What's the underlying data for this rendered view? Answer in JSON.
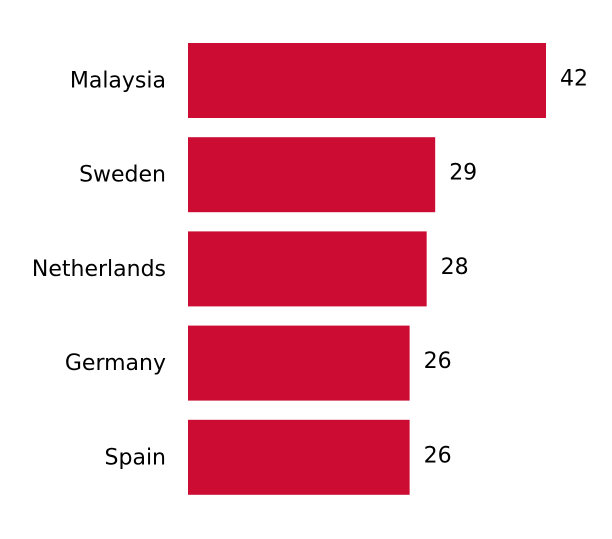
{
  "chart_data": {
    "type": "bar",
    "orientation": "horizontal",
    "categories": [
      "Malaysia",
      "Sweden",
      "Netherlands",
      "Germany",
      "Spain"
    ],
    "values": [
      42,
      29,
      28,
      26,
      26
    ],
    "color": "#cc0c33"
  }
}
